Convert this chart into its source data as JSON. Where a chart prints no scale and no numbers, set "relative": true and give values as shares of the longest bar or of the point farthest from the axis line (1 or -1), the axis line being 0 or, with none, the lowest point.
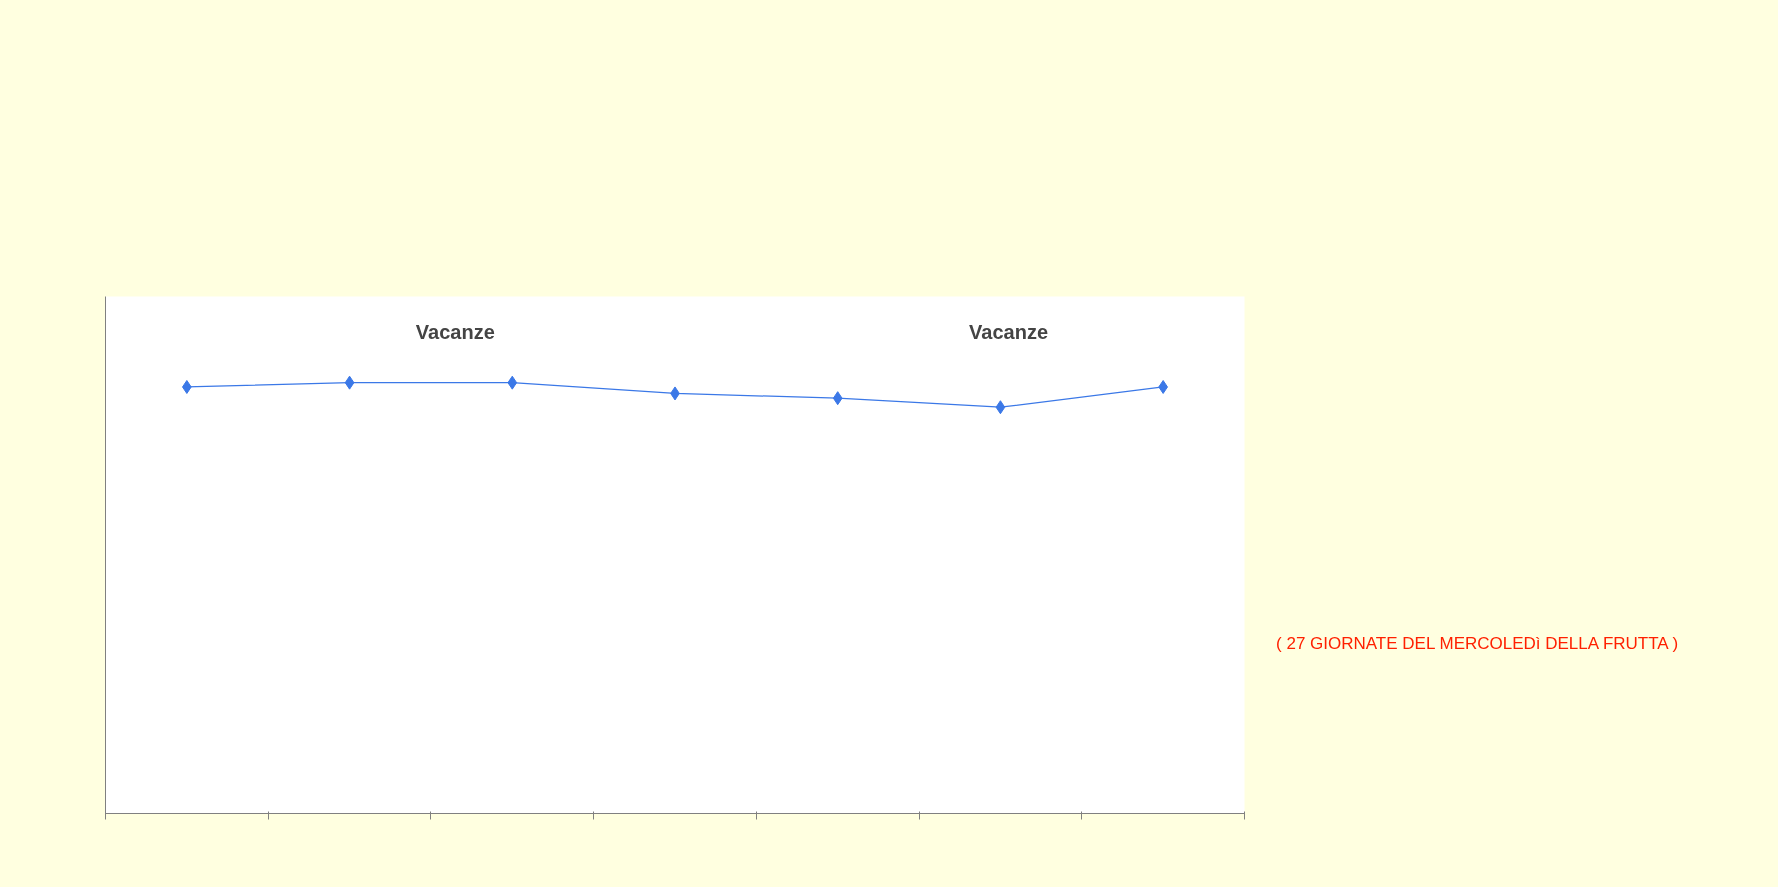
{
  "chart_data": {
    "type": "line",
    "relative": true,
    "categories": [
      null,
      null,
      null,
      null,
      null,
      null,
      null
    ],
    "series": [
      {
        "color": "#3b78e7",
        "values": [
          0.99,
          1,
          1,
          0.975,
          0.964,
          0.943,
          0.99
        ]
      }
    ],
    "marker": "diamond",
    "line_style": "solid",
    "annotations": [
      "Vacanze",
      "Vacanze",
      "( 27 GIORNATE DEL MERCOLEDì DELLA FRUTTA )"
    ]
  }
}
